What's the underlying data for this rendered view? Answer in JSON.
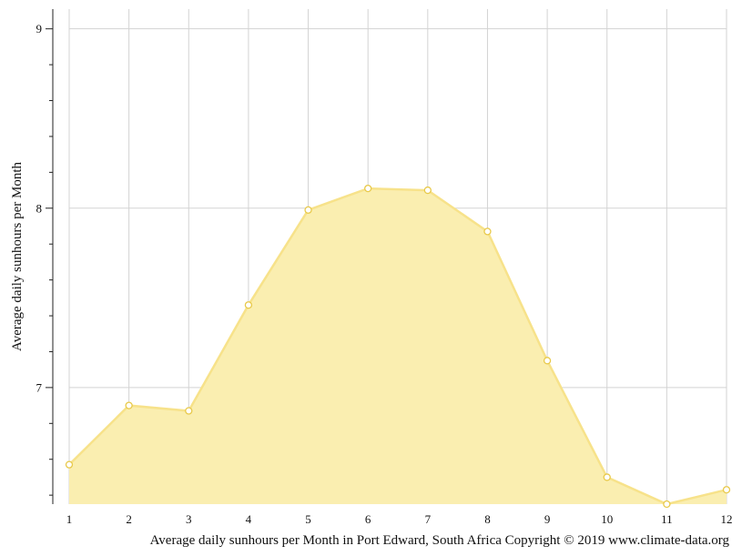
{
  "chart_data": {
    "type": "area",
    "x": [
      1,
      2,
      3,
      4,
      5,
      6,
      7,
      8,
      9,
      10,
      11,
      12
    ],
    "series": [
      {
        "values": [
          6.57,
          6.9,
          6.87,
          7.46,
          7.99,
          8.11,
          8.1,
          7.87,
          7.15,
          6.5,
          6.35,
          6.43
        ]
      }
    ],
    "ylabel": "Average daily sunhours per Month",
    "caption": "Average daily sunhours per Month in Port Edward, South Africa Copyright © 2019 www.climate-data.org",
    "xlim": [
      1,
      12
    ],
    "ylim": [
      6.35,
      9.11
    ],
    "yticks": [
      9,
      8,
      7
    ],
    "grid": true,
    "colors": {
      "fill": "#faeeb0",
      "line": "#f7e28a",
      "marker_fill": "#ffffff",
      "marker_stroke": "#e8c94a"
    }
  }
}
